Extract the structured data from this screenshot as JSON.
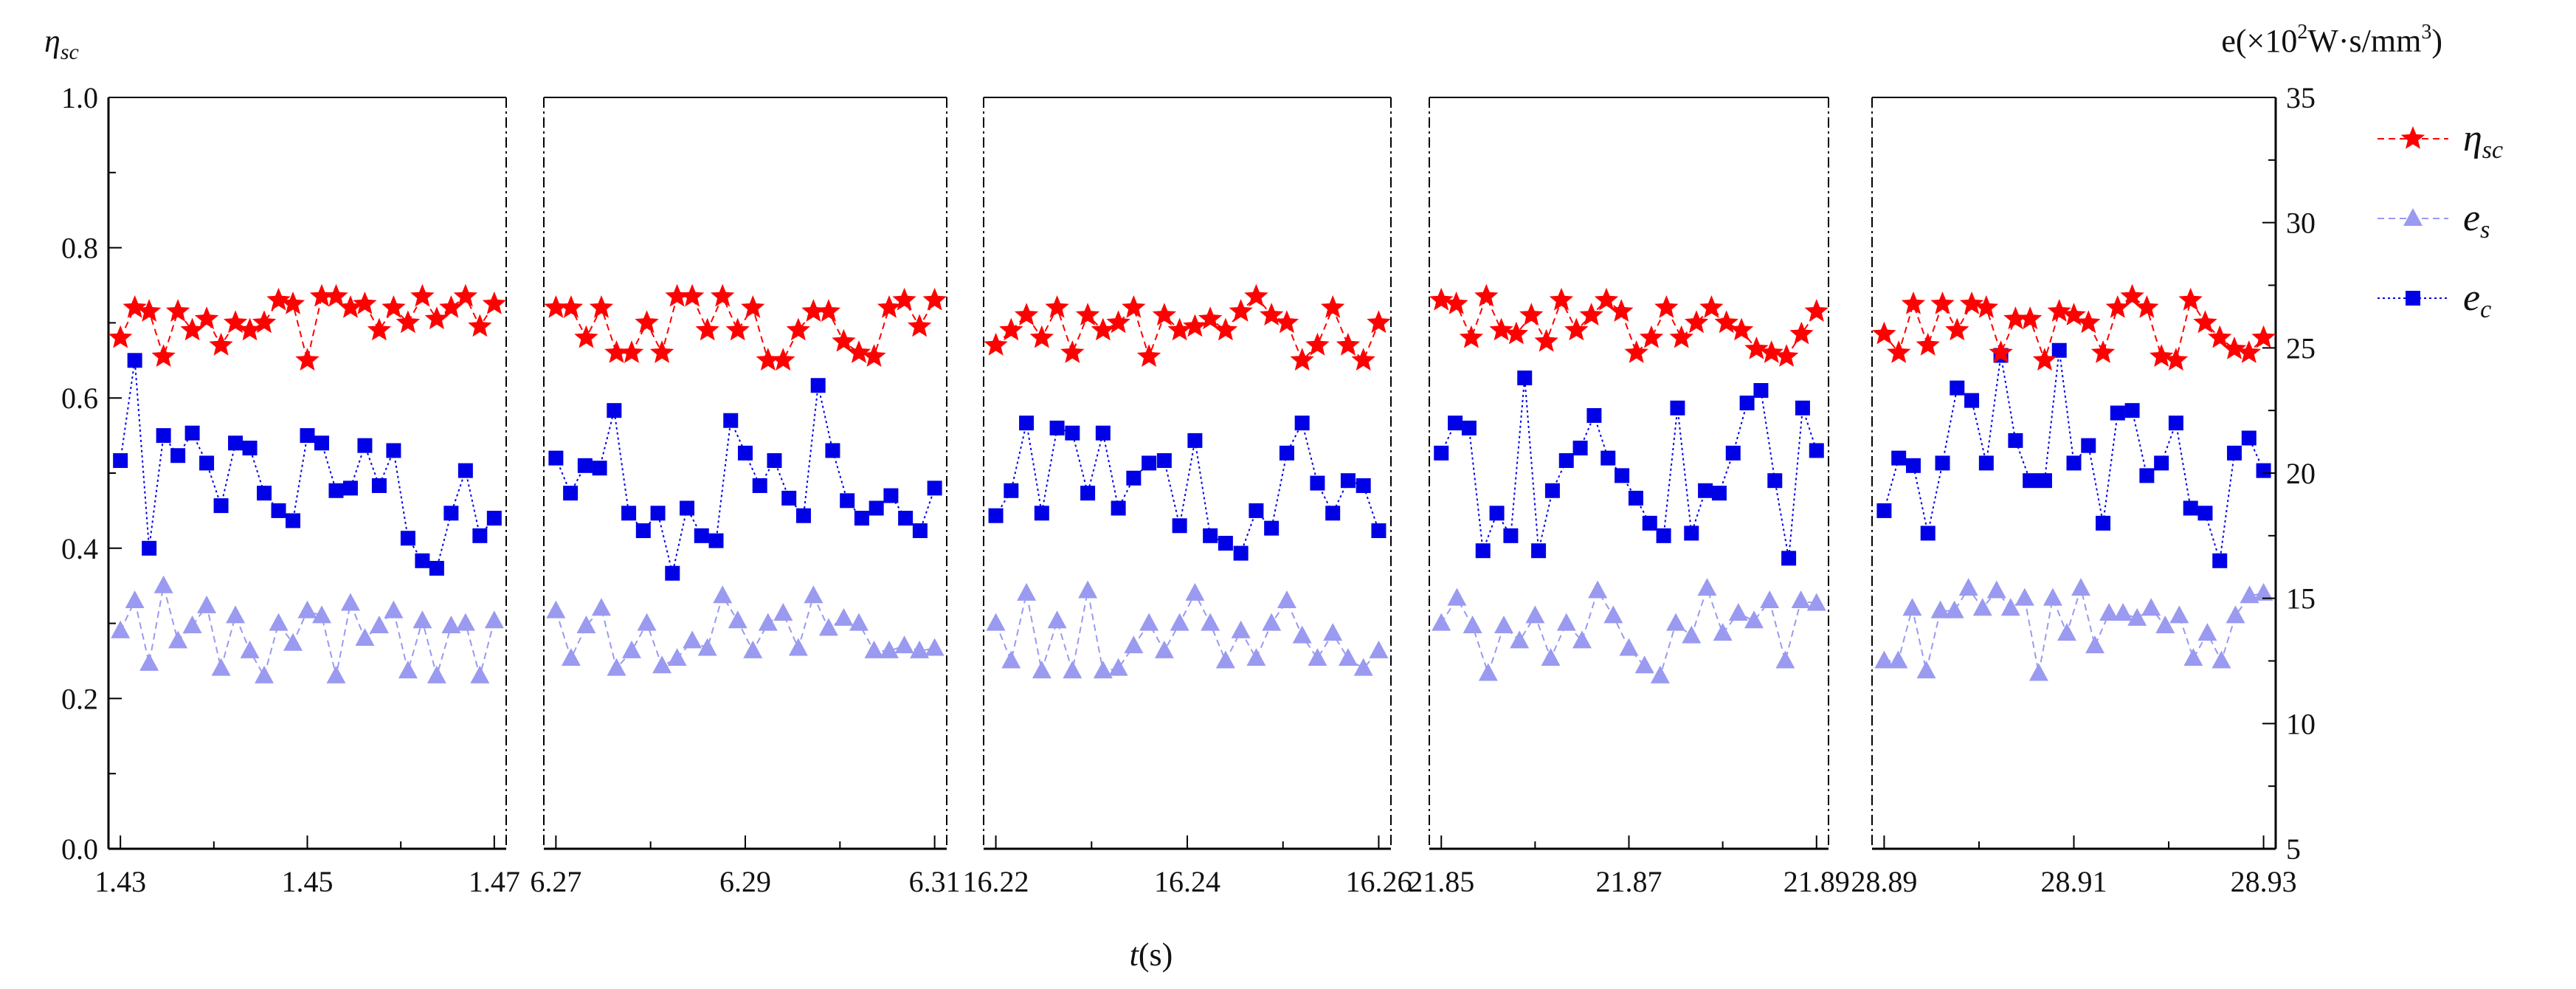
{
  "chart_data": {
    "type": "scatter",
    "left_axis": {
      "label_symbol": "η",
      "label_subscript": "sc",
      "ylim": [
        0.0,
        1.0
      ],
      "ticks": [
        "0.0",
        "0.2",
        "0.4",
        "0.6",
        "0.8",
        "1.0"
      ]
    },
    "right_axis": {
      "label_prefix": "e(×10",
      "label_sup": "2",
      "label_suffix": "W·s/mm",
      "label_sup2": "3",
      "label_end": ")",
      "ylim": [
        5,
        35
      ],
      "ticks": [
        "5",
        "10",
        "15",
        "20",
        "25",
        "30",
        "35"
      ]
    },
    "xlabel_italic": "t",
    "xlabel_rest": "(s)",
    "legend": [
      {
        "key": "eta_sc",
        "symbol": "η",
        "sub": "sc",
        "color": "#ff0000",
        "marker": "star",
        "dash": "dashed"
      },
      {
        "key": "e_s",
        "symbol": "e",
        "sub": "s",
        "color": "#9a9af0",
        "marker": "triangle",
        "dash": "dashed"
      },
      {
        "key": "e_c",
        "symbol": "e",
        "sub": "c",
        "color": "#0000e6",
        "marker": "square",
        "dash": "dotted"
      }
    ],
    "panels": [
      {
        "xlim": [
          1.43,
          1.47
        ],
        "tick_labels": [
          "1.43",
          "1.45",
          "1.47"
        ],
        "eta_sc": [
          0.68,
          0.72,
          0.715,
          0.655,
          0.715,
          0.69,
          0.705,
          0.67,
          0.7,
          0.69,
          0.7,
          0.73,
          0.725,
          0.65,
          0.735,
          0.735,
          0.72,
          0.725,
          0.69,
          0.72,
          0.7,
          0.735,
          0.705,
          0.72,
          0.735,
          0.695,
          0.725
        ],
        "e_s": [
          13.7,
          14.9,
          12.4,
          15.5,
          13.3,
          13.9,
          14.7,
          12.2,
          14.3,
          12.9,
          11.9,
          14.0,
          13.2,
          14.5,
          14.3,
          11.9,
          14.8,
          13.4,
          13.9,
          14.5,
          12.1,
          14.1,
          11.9,
          13.9,
          14.0,
          11.9,
          14.1
        ],
        "e_c": [
          20.5,
          24.5,
          17.0,
          21.5,
          20.7,
          21.6,
          20.4,
          18.7,
          21.2,
          21.0,
          19.2,
          18.5,
          18.1,
          21.5,
          21.2,
          19.3,
          19.4,
          21.1,
          19.5,
          20.9,
          17.4,
          16.5,
          16.2,
          18.4,
          20.1,
          17.5,
          18.2
        ]
      },
      {
        "xlim": [
          6.27,
          6.31
        ],
        "tick_labels": [
          "6.27",
          "6.29",
          "6.31"
        ],
        "eta_sc": [
          0.72,
          0.72,
          0.68,
          0.72,
          0.66,
          0.66,
          0.7,
          0.66,
          0.735,
          0.735,
          0.69,
          0.735,
          0.69,
          0.72,
          0.65,
          0.65,
          0.69,
          0.715,
          0.715,
          0.675,
          0.66,
          0.655,
          0.72,
          0.73,
          0.695,
          0.73
        ],
        "e_s": [
          14.5,
          12.6,
          13.9,
          14.6,
          12.2,
          12.9,
          14.0,
          12.3,
          12.6,
          13.3,
          13.0,
          15.1,
          14.1,
          12.9,
          14.0,
          14.4,
          13.0,
          15.1,
          13.8,
          14.2,
          14.0,
          12.9,
          12.9,
          13.1,
          12.9,
          13.0
        ],
        "e_c": [
          20.6,
          19.2,
          20.3,
          20.2,
          22.5,
          18.4,
          17.7,
          18.4,
          16.0,
          18.6,
          17.5,
          17.3,
          22.1,
          20.8,
          19.5,
          20.5,
          19.0,
          18.3,
          23.5,
          20.9,
          18.9,
          18.2,
          18.6,
          19.1,
          18.2,
          17.7,
          19.4
        ]
      },
      {
        "xlim": [
          16.22,
          16.26
        ],
        "tick_labels": [
          "16.22",
          "16.24",
          "16.26"
        ],
        "eta_sc": [
          0.67,
          0.69,
          0.71,
          0.68,
          0.72,
          0.66,
          0.71,
          0.69,
          0.7,
          0.72,
          0.655,
          0.71,
          0.69,
          0.695,
          0.705,
          0.69,
          0.715,
          0.735,
          0.71,
          0.7,
          0.65,
          0.67,
          0.72,
          0.67,
          0.65,
          0.7
        ],
        "e_s": [
          14.0,
          12.5,
          15.2,
          12.1,
          14.1,
          12.1,
          15.3,
          12.1,
          12.2,
          13.1,
          14.0,
          12.9,
          14.0,
          15.2,
          14.0,
          12.5,
          13.7,
          12.6,
          14.0,
          14.9,
          13.5,
          12.6,
          13.6,
          12.6,
          12.2,
          12.9
        ],
        "e_c": [
          18.3,
          19.3,
          22.0,
          18.4,
          21.8,
          21.6,
          19.2,
          21.6,
          18.6,
          19.8,
          20.4,
          20.5,
          17.9,
          21.3,
          17.5,
          17.2,
          16.8,
          18.5,
          17.8,
          20.8,
          22.0,
          19.6,
          18.4,
          19.7,
          19.5,
          17.7
        ]
      },
      {
        "xlim": [
          21.85,
          21.89
        ],
        "tick_labels": [
          "21.85",
          "21.87",
          "21.89"
        ],
        "eta_sc": [
          0.73,
          0.725,
          0.68,
          0.735,
          0.69,
          0.685,
          0.71,
          0.675,
          0.73,
          0.69,
          0.71,
          0.73,
          0.715,
          0.66,
          0.68,
          0.72,
          0.68,
          0.7,
          0.72,
          0.7,
          0.69,
          0.665,
          0.66,
          0.655,
          0.685,
          0.715
        ],
        "e_s": [
          14.0,
          15.0,
          13.9,
          12.0,
          13.9,
          13.3,
          14.3,
          12.6,
          14.0,
          13.3,
          15.3,
          14.3,
          13.0,
          12.3,
          11.9,
          14.0,
          13.5,
          15.4,
          13.6,
          14.4,
          14.1,
          14.9,
          12.5,
          14.9,
          14.8
        ],
        "e_c": [
          20.8,
          22.0,
          21.8,
          16.9,
          18.4,
          17.5,
          23.8,
          16.9,
          19.3,
          20.5,
          21.0,
          22.3,
          20.6,
          19.9,
          19.0,
          18.0,
          17.5,
          22.6,
          17.6,
          19.3,
          19.2,
          20.8,
          22.8,
          23.3,
          19.7,
          16.6,
          22.6,
          20.9
        ]
      },
      {
        "xlim": [
          28.89,
          28.93
        ],
        "tick_labels": [
          "28.89",
          "28.91",
          "28.93"
        ],
        "eta_sc": [
          0.685,
          0.66,
          0.725,
          0.67,
          0.725,
          0.69,
          0.725,
          0.72,
          0.66,
          0.705,
          0.705,
          0.65,
          0.715,
          0.71,
          0.7,
          0.66,
          0.72,
          0.735,
          0.72,
          0.655,
          0.65,
          0.73,
          0.7,
          0.68,
          0.665,
          0.66,
          0.68
        ],
        "e_s": [
          12.5,
          12.5,
          14.6,
          12.1,
          14.5,
          14.5,
          15.4,
          14.6,
          15.3,
          14.6,
          15.0,
          12.0,
          15.0,
          13.6,
          15.4,
          13.1,
          14.4,
          14.4,
          14.2,
          14.6,
          13.9,
          14.3,
          12.6,
          13.6,
          12.5,
          14.3,
          15.1,
          15.2
        ],
        "e_c": [
          18.5,
          20.6,
          20.3,
          17.6,
          20.4,
          23.4,
          22.9,
          20.4,
          24.7,
          21.3,
          19.7,
          19.7,
          24.9,
          20.4,
          21.1,
          18.0,
          22.4,
          22.5,
          19.9,
          20.4,
          22.0,
          18.6,
          18.4,
          16.5,
          20.8,
          21.4,
          20.1
        ]
      }
    ]
  }
}
